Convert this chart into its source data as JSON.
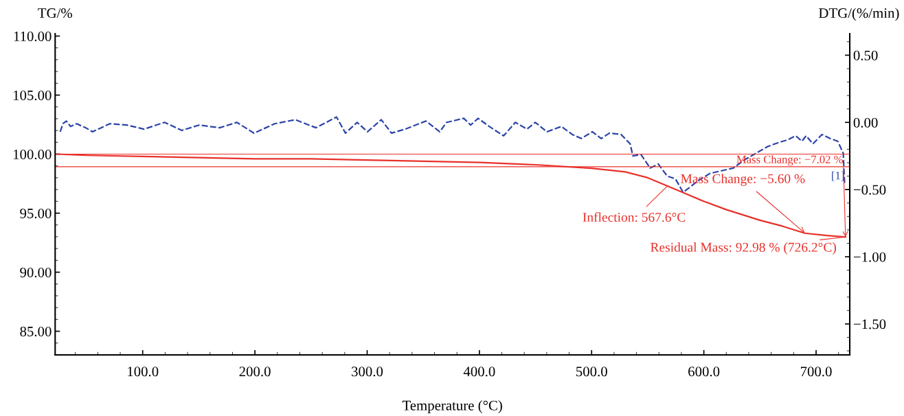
{
  "chart_data": {
    "type": "line",
    "xlabel": "Temperature (°C)",
    "ylabel": "TG/%",
    "y2label": "DTG/(%/min)",
    "xlim": [
      22,
      730
    ],
    "ylim": [
      83,
      110.2
    ],
    "y2lim": [
      -1.73,
      0.66
    ],
    "xticks": [
      {
        "value": 100,
        "label": "100.0"
      },
      {
        "value": 200,
        "label": "200.0"
      },
      {
        "value": 300,
        "label": "300.0"
      },
      {
        "value": 400,
        "label": "400.0"
      },
      {
        "value": 500,
        "label": "500.0"
      },
      {
        "value": 600,
        "label": "600.0"
      },
      {
        "value": 700,
        "label": "700.0"
      }
    ],
    "yticks": [
      {
        "value": 85,
        "label": "85.00"
      },
      {
        "value": 90,
        "label": "90.00"
      },
      {
        "value": 95,
        "label": "95.00"
      },
      {
        "value": 100,
        "label": "100.00"
      },
      {
        "value": 105,
        "label": "105.00"
      },
      {
        "value": 110,
        "label": "110.00"
      }
    ],
    "y2ticks": [
      {
        "value": -1.5,
        "label": "−1.50"
      },
      {
        "value": -1.0,
        "label": "−1.00"
      },
      {
        "value": -0.5,
        "label": "−0.50"
      },
      {
        "value": 0.0,
        "label": "0.00"
      },
      {
        "value": 0.5,
        "label": "0.50"
      }
    ],
    "grid": false,
    "legend": false,
    "series": [
      {
        "color": "#e8302a",
        "line_style": "solid",
        "x": [
          24,
          50,
          100,
          150,
          200,
          250,
          300,
          350,
          400,
          450,
          500,
          530,
          550,
          567.6,
          580,
          600,
          620,
          650,
          670,
          690,
          710,
          726.2
        ],
        "values": [
          100.0,
          99.9,
          99.8,
          99.7,
          99.6,
          99.6,
          99.5,
          99.4,
          99.3,
          99.1,
          98.8,
          98.5,
          98.0,
          97.3,
          96.8,
          96.0,
          95.3,
          94.4,
          93.9,
          93.3,
          93.1,
          92.98
        ]
      },
      {
        "axis": "y2",
        "color": "#2b44a8",
        "line_style": "dashed",
        "x": [
          26.5,
          28.9,
          32.0,
          35.7,
          41.2,
          49.2,
          55.3,
          70.6,
          85.9,
          101.2,
          119.6,
          134.9,
          150.2,
          168.6,
          183.9,
          199.2,
          217.6,
          236.0,
          254.4,
          272.7,
          280.7,
          291.1,
          300.3,
          312.6,
          321.7,
          334.0,
          352.4,
          364.6,
          370.8,
          386.1,
          392.2,
          398.9,
          408.7,
          421.6,
          432.0,
          442.4,
          449.8,
          460.2,
          473.0,
          482.8,
          490.8,
          500.6,
          508.6,
          515.9,
          526.3,
          534.3,
          536.8,
          544.1,
          552.1,
          559.4,
          567.4,
          574.7,
          581.5,
          586.4,
          595.6,
          605.4,
          615.8,
          626.2,
          636.0,
          646.4,
          656.8,
          666.6,
          674.6,
          681.9,
          687.4,
          691.1,
          697.2,
          705.2,
          712.5,
          719.3,
          724.2,
          725.4
        ],
        "values": [
          -0.07,
          -0.01,
          0.01,
          -0.03,
          -0.01,
          -0.04,
          -0.07,
          -0.01,
          -0.02,
          -0.05,
          0.0,
          -0.06,
          -0.02,
          -0.04,
          0.0,
          -0.08,
          -0.01,
          0.02,
          -0.04,
          0.04,
          -0.08,
          0.0,
          -0.07,
          0.02,
          -0.08,
          -0.05,
          0.01,
          -0.07,
          0.0,
          0.03,
          -0.02,
          0.03,
          -0.03,
          -0.1,
          0.0,
          -0.05,
          0.0,
          -0.07,
          -0.03,
          -0.09,
          -0.12,
          -0.07,
          -0.12,
          -0.08,
          -0.09,
          -0.16,
          -0.25,
          -0.24,
          -0.34,
          -0.31,
          -0.4,
          -0.42,
          -0.52,
          -0.49,
          -0.43,
          -0.38,
          -0.36,
          -0.34,
          -0.28,
          -0.23,
          -0.18,
          -0.15,
          -0.13,
          -0.1,
          -0.14,
          -0.1,
          -0.16,
          -0.09,
          -0.12,
          -0.14,
          -0.23,
          -0.46
        ]
      }
    ],
    "ref_lines": [
      {
        "axis": "y",
        "value": 100.0,
        "color": "#e8302a"
      },
      {
        "axis": "y",
        "value": 98.93,
        "color": "#e8302a"
      }
    ],
    "annotations": [
      {
        "text": "Inflection: 567.6°C",
        "x": 567.6,
        "y": 97.3
      },
      {
        "text": "Mass Change: −7.02 %",
        "x": 726.2,
        "y": 92.98
      },
      {
        "text": "Mass Change: −5.60 %",
        "x": 690,
        "y": 93.3
      },
      {
        "text": "Residual Mass: 92.98 % (726.2°C)",
        "x": 726.2,
        "y": 92.98
      },
      "[1]"
    ]
  }
}
